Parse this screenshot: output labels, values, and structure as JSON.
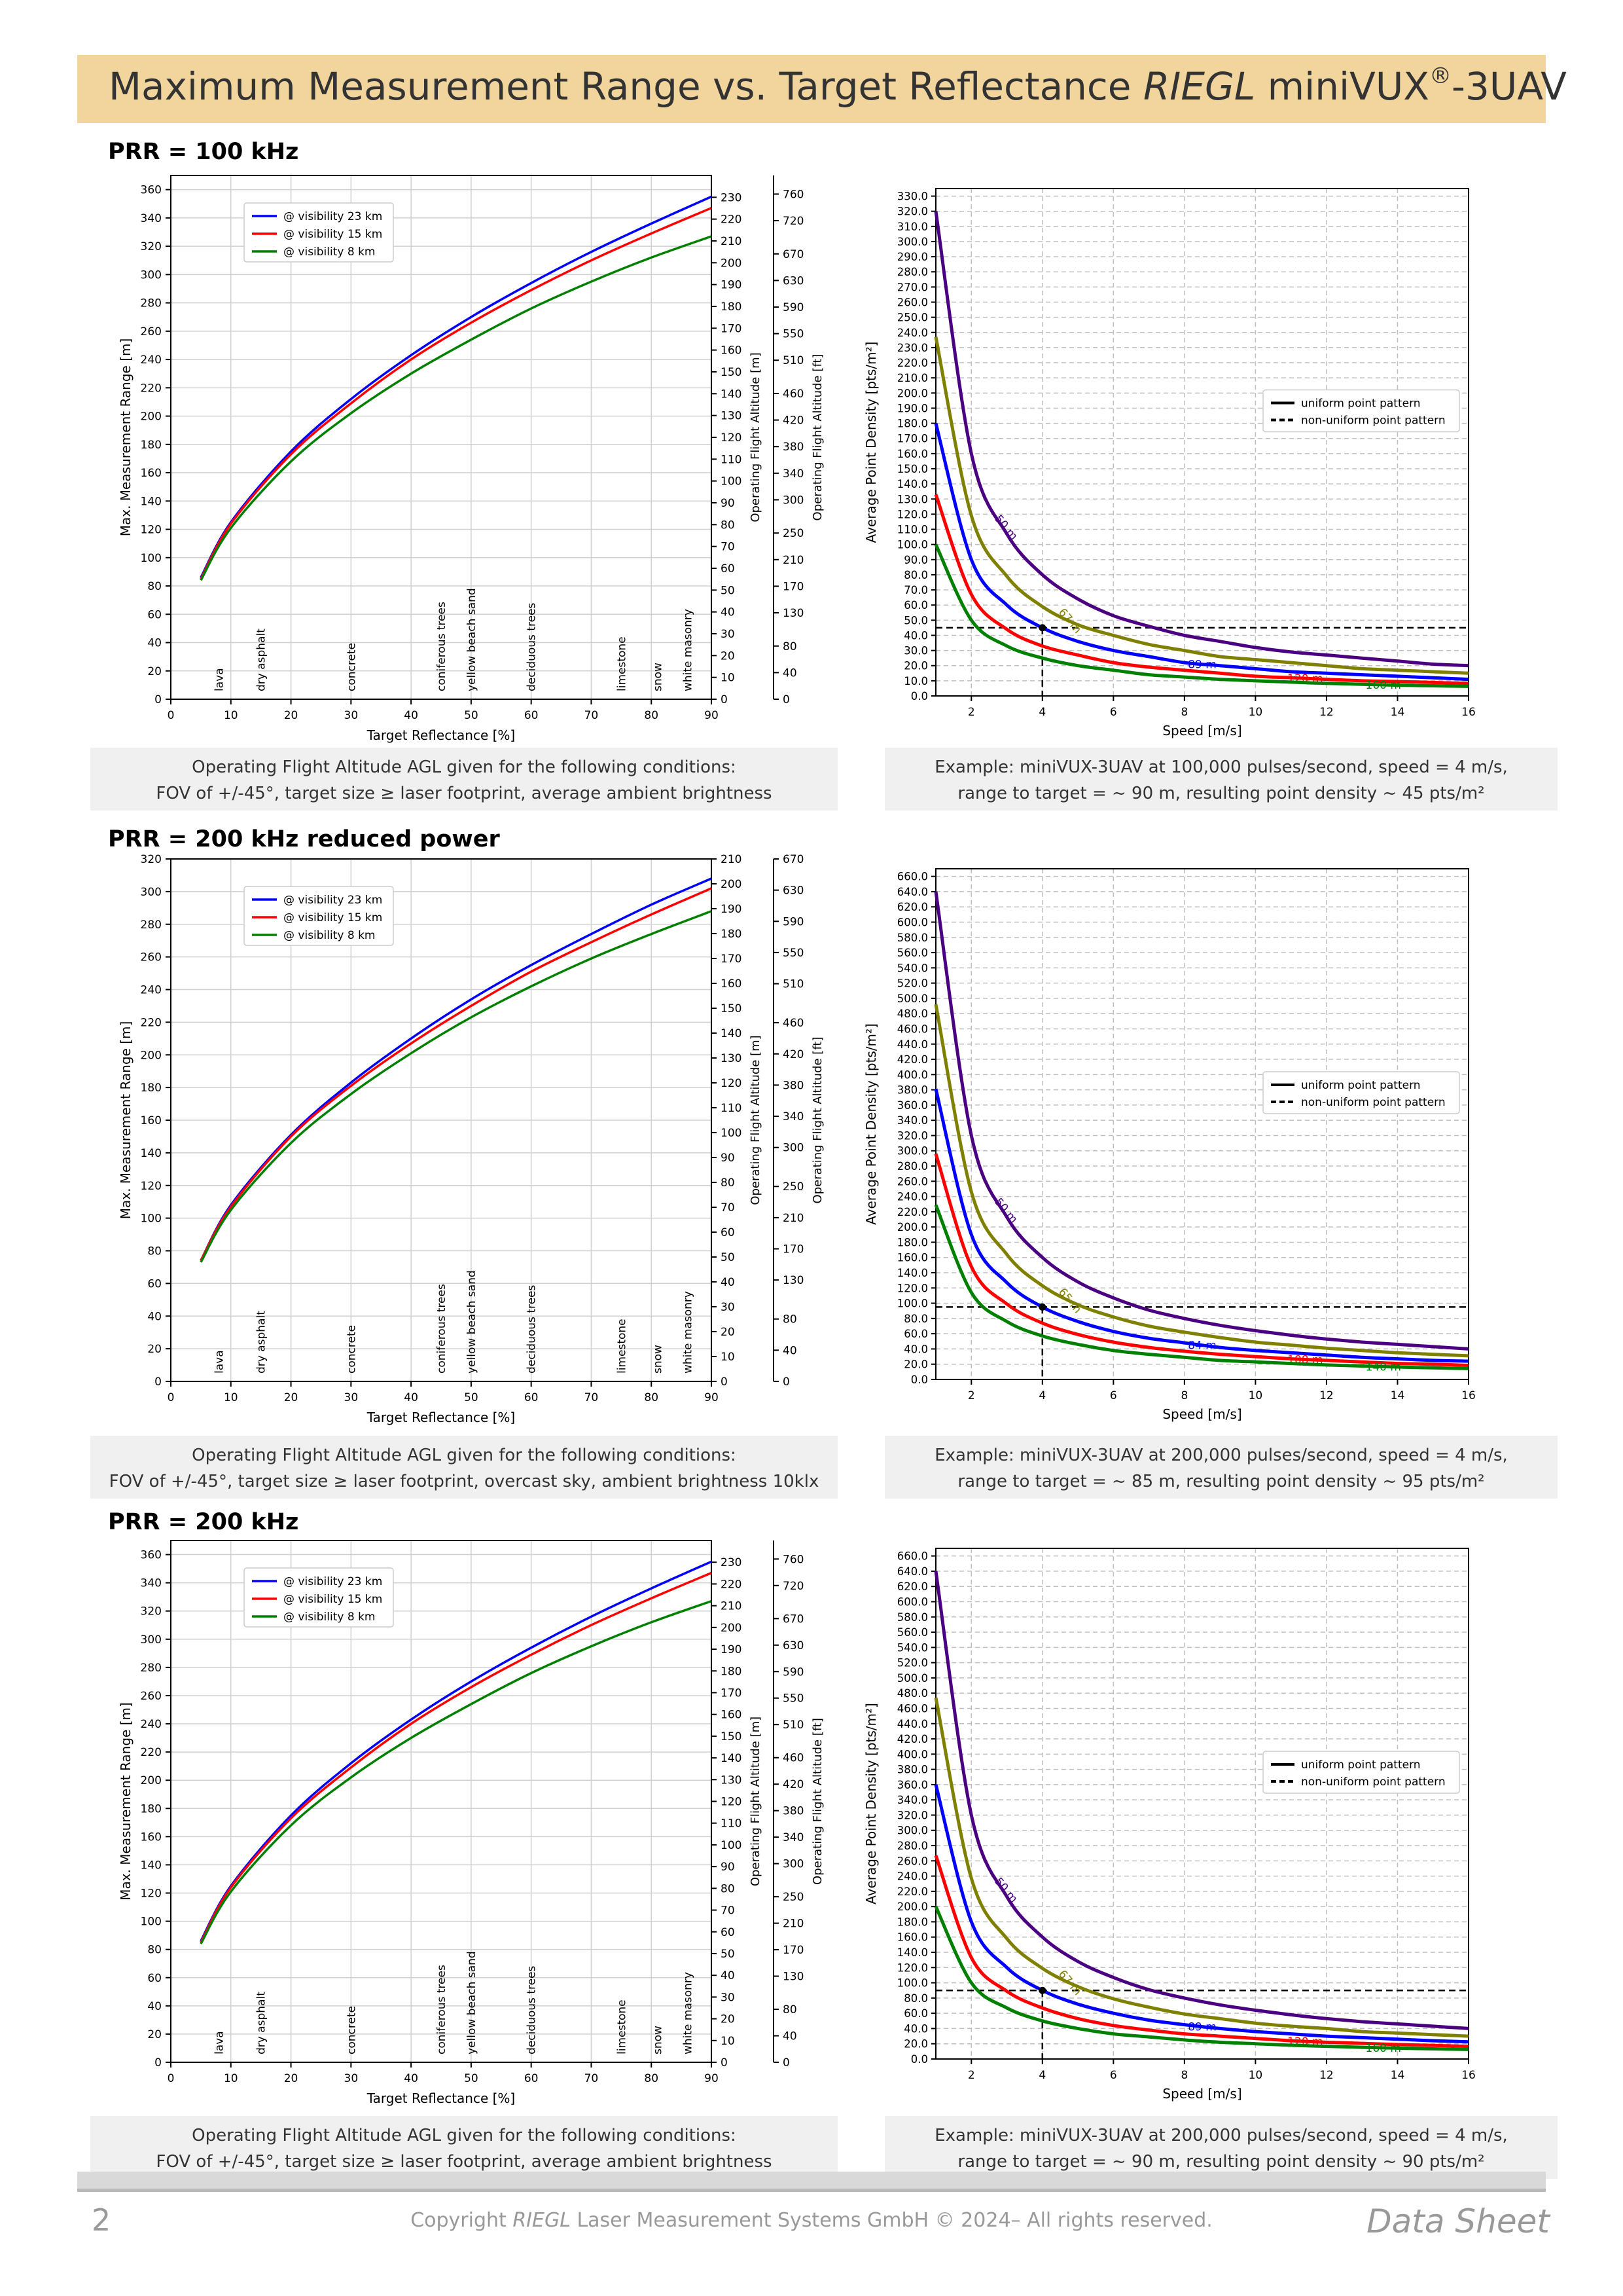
{
  "header": {
    "title_prefix": "Maximum Measurement Range vs. Target Reflectance ",
    "title_brand": "RIEGL",
    "title_product": " miniVUX",
    "title_reg": "®",
    "title_suffix": "-3UAV"
  },
  "footer": {
    "page": "2",
    "copyright_prefix": "Copyright ",
    "copyright_brand": "RIEGL",
    "copyright_suffix": " Laser Measurement Systems GmbH © 2024– All rights reserved.",
    "label": "Data Sheet"
  },
  "colors": {
    "banner": "#f2d59c",
    "blue": "#0000ff",
    "red": "#ff0000",
    "green": "#008000",
    "olive": "#808000",
    "indigo": "#4b0082"
  },
  "sections": [
    {
      "title": "PRR = 100 kHz",
      "caption_left": [
        "Operating Flight Altitude AGL given for the following conditions:",
        "FOV of +/-45°, target size ≥ laser footprint, average ambient brightness"
      ],
      "caption_right": [
        "Example: miniVUX-3UAV at 100,000 pulses/second, speed = 4 m/s,",
        "range to target = ~ 90 m, resulting point density ~ 45 pts/m²"
      ]
    },
    {
      "title": "PRR = 200 kHz reduced power",
      "caption_left": [
        "Operating Flight Altitude AGL given for the following conditions:",
        "FOV of +/-45°, target size ≥ laser footprint, overcast sky, ambient brightness 10klx"
      ],
      "caption_right": [
        "Example: miniVUX-3UAV at 200,000 pulses/second, speed = 4 m/s,",
        "range to target = ~ 85 m, resulting point density ~ 95 pts/m²"
      ]
    },
    {
      "title": "PRR = 200 kHz",
      "caption_left": [
        "Operating Flight Altitude AGL given for the following conditions:",
        "FOV of +/-45°, target size ≥ laser footprint, average ambient brightness"
      ],
      "caption_right": [
        "Example: miniVUX-3UAV at 200,000 pulses/second, speed = 4 m/s,",
        "range to target = ~ 90 m, resulting point density ~ 90 pts/m²"
      ]
    }
  ],
  "chart_data": [
    {
      "type": "line",
      "panel": "range",
      "section": 0,
      "xlabel": "Target Reflectance [%]",
      "ylabel": "Max. Measurement Range [m]",
      "y2label": "Operating Flight Altitude [m]",
      "y3label": "Operating Flight Altitude [ft]",
      "xlim": [
        0,
        90
      ],
      "ylim": [
        0,
        370
      ],
      "y2lim": [
        0,
        240
      ],
      "y3lim": [
        0,
        788
      ],
      "xticks": [
        0,
        10,
        20,
        30,
        40,
        50,
        60,
        70,
        80,
        90
      ],
      "yticks": [
        0,
        20,
        40,
        60,
        80,
        100,
        120,
        140,
        160,
        180,
        200,
        220,
        240,
        260,
        280,
        300,
        320,
        340,
        360
      ],
      "y2ticks": [
        0,
        10,
        20,
        30,
        40,
        50,
        60,
        70,
        80,
        90,
        100,
        110,
        120,
        130,
        140,
        150,
        160,
        170,
        180,
        190,
        200,
        210,
        220,
        230
      ],
      "y3ticks": [
        0,
        40,
        80,
        130,
        170,
        210,
        250,
        300,
        340,
        380,
        420,
        460,
        510,
        550,
        590,
        630,
        670,
        720,
        760
      ],
      "legend": "upper-left",
      "grid": true,
      "materials": [
        {
          "name": "lava",
          "x": 8
        },
        {
          "name": "dry asphalt",
          "x": 15
        },
        {
          "name": "concrete",
          "x": 30
        },
        {
          "name": "coniferous trees",
          "x": 45
        },
        {
          "name": "yellow beach sand",
          "x": 50
        },
        {
          "name": "deciduous trees",
          "x": 60
        },
        {
          "name": "limestone",
          "x": 75
        },
        {
          "name": "snow",
          "x": 81
        },
        {
          "name": "white masonry",
          "x": 86
        }
      ],
      "x": [
        5,
        10,
        20,
        30,
        40,
        50,
        60,
        70,
        80,
        90
      ],
      "series": [
        {
          "name": "@ visibility 23 km",
          "color": "#0000ff",
          "values": [
            86,
            125,
            175,
            212,
            243,
            270,
            294,
            316,
            336,
            355
          ]
        },
        {
          "name": "@ visibility 15 km",
          "color": "#ff0000",
          "values": [
            85,
            124,
            173,
            209,
            240,
            266,
            289,
            310,
            329,
            347
          ]
        },
        {
          "name": "@ visibility 8 km",
          "color": "#008000",
          "values": [
            84,
            121,
            168,
            202,
            230,
            254,
            276,
            295,
            312,
            327
          ]
        }
      ]
    },
    {
      "type": "line",
      "panel": "density",
      "section": 0,
      "xlabel": "Speed [m/s]",
      "ylabel": "Average Point Density [pts/m²]",
      "xlim": [
        1,
        16
      ],
      "ylim": [
        0,
        335
      ],
      "ytick_step": 10,
      "ytick_max": 330,
      "xticks": [
        2,
        4,
        6,
        8,
        10,
        12,
        14,
        16
      ],
      "legend": "center-right",
      "legend_items": [
        "uniform point pattern",
        "non-uniform point pattern"
      ],
      "example": {
        "x": 4,
        "y": 45
      },
      "x": [
        1,
        2,
        3,
        4,
        5,
        6,
        7,
        8,
        9,
        10,
        11,
        12,
        13,
        14,
        15,
        16
      ],
      "series": [
        {
          "name": "50 m",
          "color": "#4b0082",
          "values": [
            320,
            160,
            107,
            80,
            64,
            53,
            46,
            40,
            36,
            32,
            29,
            27,
            25,
            23,
            21,
            20
          ]
        },
        {
          "name": "67 m",
          "color": "#808000",
          "values": [
            237,
            119,
            79,
            59,
            47,
            40,
            34,
            30,
            26,
            24,
            22,
            20,
            18,
            17,
            16,
            15
          ]
        },
        {
          "name": "89 m",
          "color": "#0000ff",
          "values": [
            180,
            90,
            60,
            45,
            36,
            30,
            26,
            22,
            20,
            18,
            16,
            15,
            14,
            13,
            12,
            11
          ]
        },
        {
          "name": "120 m",
          "color": "#ff0000",
          "values": [
            133,
            67,
            44,
            33,
            27,
            22,
            19,
            17,
            15,
            13,
            12,
            11,
            10,
            9.5,
            8.9,
            8.3
          ]
        },
        {
          "name": "160 m",
          "color": "#008000",
          "values": [
            100,
            50,
            33,
            25,
            20,
            17,
            14,
            12.5,
            11,
            10,
            9.1,
            8.3,
            7.7,
            7.1,
            6.7,
            6.3
          ]
        }
      ]
    },
    {
      "type": "line",
      "panel": "range",
      "section": 1,
      "xlabel": "Target Reflectance [%]",
      "ylabel": "Max. Measurement Range [m]",
      "y2label": "Operating Flight Altitude [m]",
      "y3label": "Operating Flight Altitude [ft]",
      "xlim": [
        0,
        90
      ],
      "ylim": [
        0,
        320
      ],
      "y2lim": [
        0,
        210
      ],
      "y3lim": [
        0,
        670
      ],
      "xticks": [
        0,
        10,
        20,
        30,
        40,
        50,
        60,
        70,
        80,
        90
      ],
      "yticks": [
        0,
        20,
        40,
        60,
        80,
        100,
        120,
        140,
        160,
        180,
        200,
        220,
        240,
        260,
        280,
        300,
        320
      ],
      "y2ticks": [
        0,
        10,
        20,
        30,
        40,
        50,
        60,
        70,
        80,
        90,
        100,
        110,
        120,
        130,
        140,
        150,
        160,
        170,
        180,
        190,
        200,
        210
      ],
      "y3ticks": [
        0,
        40,
        80,
        130,
        170,
        210,
        250,
        300,
        340,
        380,
        420,
        460,
        510,
        550,
        590,
        630,
        670
      ],
      "legend": "upper-left",
      "grid": true,
      "materials": [
        {
          "name": "lava",
          "x": 8
        },
        {
          "name": "dry asphalt",
          "x": 15
        },
        {
          "name": "concrete",
          "x": 30
        },
        {
          "name": "coniferous trees",
          "x": 45
        },
        {
          "name": "yellow beach sand",
          "x": 50
        },
        {
          "name": "deciduous trees",
          "x": 60
        },
        {
          "name": "limestone",
          "x": 75
        },
        {
          "name": "snow",
          "x": 81
        },
        {
          "name": "white masonry",
          "x": 86
        }
      ],
      "x": [
        5,
        10,
        20,
        30,
        40,
        50,
        60,
        70,
        80,
        90
      ],
      "series": [
        {
          "name": "@ visibility 23 km",
          "color": "#0000ff",
          "values": [
            74,
            108,
            151,
            183,
            210,
            234,
            255,
            274,
            292,
            308
          ]
        },
        {
          "name": "@ visibility 15 km",
          "color": "#ff0000",
          "values": [
            74,
            107,
            150,
            181,
            207,
            230,
            251,
            269,
            286,
            302
          ]
        },
        {
          "name": "@ visibility 8 km",
          "color": "#008000",
          "values": [
            73,
            105,
            146,
            176,
            201,
            223,
            242,
            259,
            274,
            288
          ]
        }
      ]
    },
    {
      "type": "line",
      "panel": "density",
      "section": 1,
      "xlabel": "Speed [m/s]",
      "ylabel": "Average Point Density [pts/m²]",
      "xlim": [
        1,
        16
      ],
      "ylim": [
        0,
        670
      ],
      "ytick_step": 20,
      "ytick_max": 660,
      "xticks": [
        2,
        4,
        6,
        8,
        10,
        12,
        14,
        16
      ],
      "legend": "center-right",
      "legend_items": [
        "uniform point pattern",
        "non-uniform point pattern"
      ],
      "example": {
        "x": 4,
        "y": 95
      },
      "x": [
        1,
        2,
        3,
        4,
        5,
        6,
        7,
        8,
        9,
        10,
        11,
        12,
        13,
        14,
        15,
        16
      ],
      "series": [
        {
          "name": "50 m",
          "color": "#4b0082",
          "values": [
            640,
            320,
            213,
            160,
            128,
            107,
            91,
            80,
            71,
            64,
            58,
            53,
            49,
            46,
            43,
            40
          ]
        },
        {
          "name": "65 m",
          "color": "#808000",
          "values": [
            492,
            246,
            164,
            123,
            98,
            82,
            70,
            62,
            55,
            49,
            45,
            41,
            38,
            35,
            33,
            31
          ]
        },
        {
          "name": "84 m",
          "color": "#0000ff",
          "values": [
            381,
            190,
            127,
            95,
            76,
            63,
            54,
            48,
            42,
            38,
            35,
            32,
            29,
            27,
            25,
            24
          ]
        },
        {
          "name": "108 m",
          "color": "#ff0000",
          "values": [
            296,
            148,
            99,
            74,
            59,
            49,
            42,
            37,
            33,
            30,
            27,
            25,
            23,
            21,
            20,
            18.5
          ]
        },
        {
          "name": "140 m",
          "color": "#008000",
          "values": [
            229,
            114,
            76,
            57,
            46,
            38,
            33,
            29,
            25,
            23,
            21,
            19,
            17.6,
            16.3,
            15.2,
            14.3
          ]
        }
      ]
    },
    {
      "type": "line",
      "panel": "range",
      "section": 2,
      "xlabel": "Target Reflectance [%]",
      "ylabel": "Max. Measurement Range [m]",
      "y2label": "Operating Flight Altitude [m]",
      "y3label": "Operating Flight Altitude [ft]",
      "xlim": [
        0,
        90
      ],
      "ylim": [
        0,
        370
      ],
      "y2lim": [
        0,
        240
      ],
      "y3lim": [
        0,
        788
      ],
      "xticks": [
        0,
        10,
        20,
        30,
        40,
        50,
        60,
        70,
        80,
        90
      ],
      "yticks": [
        0,
        20,
        40,
        60,
        80,
        100,
        120,
        140,
        160,
        180,
        200,
        220,
        240,
        260,
        280,
        300,
        320,
        340,
        360
      ],
      "y2ticks": [
        0,
        10,
        20,
        30,
        40,
        50,
        60,
        70,
        80,
        90,
        100,
        110,
        120,
        130,
        140,
        150,
        160,
        170,
        180,
        190,
        200,
        210,
        220,
        230
      ],
      "y3ticks": [
        0,
        40,
        80,
        130,
        170,
        210,
        250,
        300,
        340,
        380,
        420,
        460,
        510,
        550,
        590,
        630,
        670,
        720,
        760
      ],
      "legend": "upper-left",
      "grid": true,
      "materials": [
        {
          "name": "lava",
          "x": 8
        },
        {
          "name": "dry asphalt",
          "x": 15
        },
        {
          "name": "concrete",
          "x": 30
        },
        {
          "name": "coniferous trees",
          "x": 45
        },
        {
          "name": "yellow beach sand",
          "x": 50
        },
        {
          "name": "deciduous trees",
          "x": 60
        },
        {
          "name": "limestone",
          "x": 75
        },
        {
          "name": "snow",
          "x": 81
        },
        {
          "name": "white masonry",
          "x": 86
        }
      ],
      "x": [
        5,
        10,
        20,
        30,
        40,
        50,
        60,
        70,
        80,
        90
      ],
      "series": [
        {
          "name": "@ visibility 23 km",
          "color": "#0000ff",
          "values": [
            86,
            125,
            175,
            212,
            243,
            270,
            294,
            316,
            336,
            355
          ]
        },
        {
          "name": "@ visibility 15 km",
          "color": "#ff0000",
          "values": [
            85,
            124,
            173,
            209,
            240,
            266,
            289,
            310,
            329,
            347
          ]
        },
        {
          "name": "@ visibility 8 km",
          "color": "#008000",
          "values": [
            84,
            121,
            168,
            202,
            230,
            254,
            276,
            295,
            312,
            327
          ]
        }
      ]
    },
    {
      "type": "line",
      "panel": "density",
      "section": 2,
      "xlabel": "Speed [m/s]",
      "ylabel": "Average Point Density [pts/m²]",
      "xlim": [
        1,
        16
      ],
      "ylim": [
        0,
        670
      ],
      "ytick_step": 20,
      "ytick_max": 660,
      "xticks": [
        2,
        4,
        6,
        8,
        10,
        12,
        14,
        16
      ],
      "legend": "center-right",
      "legend_items": [
        "uniform point pattern",
        "non-uniform point pattern"
      ],
      "example": {
        "x": 4,
        "y": 90
      },
      "x": [
        1,
        2,
        3,
        4,
        5,
        6,
        7,
        8,
        9,
        10,
        11,
        12,
        13,
        14,
        15,
        16
      ],
      "series": [
        {
          "name": "50 m",
          "color": "#4b0082",
          "values": [
            640,
            320,
            213,
            160,
            128,
            107,
            91,
            80,
            71,
            64,
            58,
            53,
            49,
            46,
            43,
            40
          ]
        },
        {
          "name": "67 m",
          "color": "#808000",
          "values": [
            474,
            237,
            158,
            119,
            95,
            79,
            68,
            59,
            53,
            47,
            43,
            40,
            36,
            34,
            32,
            30
          ]
        },
        {
          "name": "89 m",
          "color": "#0000ff",
          "values": [
            360,
            180,
            120,
            90,
            72,
            60,
            51,
            45,
            40,
            36,
            33,
            30,
            28,
            26,
            24,
            22.5
          ]
        },
        {
          "name": "120 m",
          "color": "#ff0000",
          "values": [
            267,
            133,
            89,
            67,
            53,
            44,
            38,
            33,
            30,
            27,
            24,
            22,
            20.5,
            19,
            17.8,
            16.7
          ]
        },
        {
          "name": "160 m",
          "color": "#008000",
          "values": [
            200,
            100,
            67,
            50,
            40,
            33,
            29,
            25,
            22,
            20,
            18,
            16.7,
            15.4,
            14.3,
            13.3,
            12.5
          ]
        }
      ]
    }
  ]
}
